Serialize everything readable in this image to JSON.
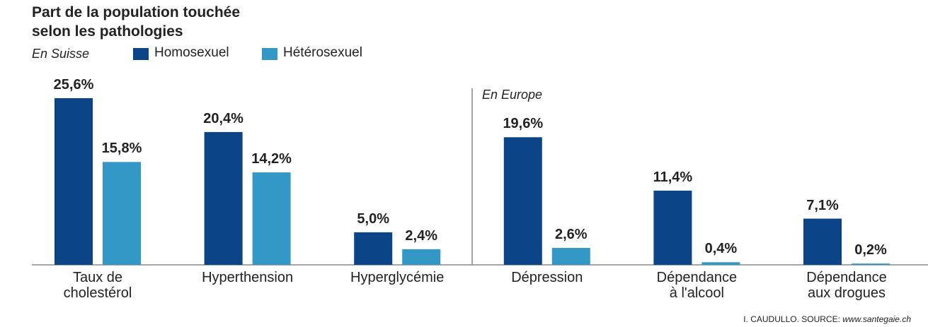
{
  "chart_data": {
    "type": "bar",
    "title": "Part de la population touchée\nselon les pathologies",
    "annotations": [
      "En Suisse",
      "En Europe"
    ],
    "categories": [
      "Taux de\ncholestérol",
      "Hyperthension",
      "Hyperglycémie",
      "Dépression",
      "Dépendance\nà l'alcool",
      "Dépendance\naux drogues"
    ],
    "series": [
      {
        "name": "Homosexuel",
        "color": "#0b4587",
        "values": [
          25.6,
          20.4,
          5.0,
          19.6,
          11.4,
          7.1
        ],
        "value_labels": [
          "25,6%",
          "20,4%",
          "5,0%",
          "19,6%",
          "11,4%",
          "7,1%"
        ]
      },
      {
        "name": "Hétérosexuel",
        "color": "#3398c6",
        "values": [
          15.8,
          14.2,
          2.4,
          2.6,
          0.4,
          0.2
        ],
        "value_labels": [
          "15,8%",
          "14,2%",
          "2,4%",
          "2,6%",
          "0,4%",
          "0,2%"
        ]
      }
    ],
    "credit": "I. CAUDULLO. SOURCE:",
    "source": "www.santegaie.ch"
  }
}
